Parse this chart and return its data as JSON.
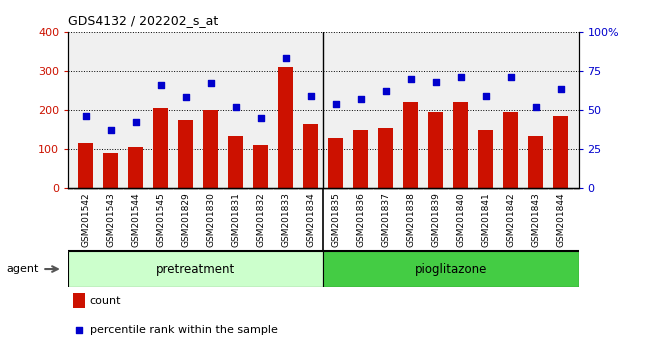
{
  "title": "GDS4132 / 202202_s_at",
  "samples": [
    "GSM201542",
    "GSM201543",
    "GSM201544",
    "GSM201545",
    "GSM201829",
    "GSM201830",
    "GSM201831",
    "GSM201832",
    "GSM201833",
    "GSM201834",
    "GSM201835",
    "GSM201836",
    "GSM201837",
    "GSM201838",
    "GSM201839",
    "GSM201840",
    "GSM201841",
    "GSM201842",
    "GSM201843",
    "GSM201844"
  ],
  "counts": [
    115,
    88,
    105,
    205,
    173,
    200,
    133,
    110,
    310,
    163,
    128,
    147,
    152,
    220,
    195,
    220,
    148,
    195,
    132,
    183
  ],
  "percentiles": [
    46,
    37,
    42,
    66,
    58,
    67,
    52,
    45,
    83,
    59,
    54,
    57,
    62,
    70,
    68,
    71,
    59,
    71,
    52,
    63
  ],
  "group1_label": "pretreatment",
  "group1_count": 10,
  "group2_label": "pioglitazone",
  "group2_count": 10,
  "agent_label": "agent",
  "bar_color": "#cc1100",
  "dot_color": "#0000cc",
  "ylim_left": [
    0,
    400
  ],
  "ylim_right": [
    0,
    100
  ],
  "yticks_left": [
    0,
    100,
    200,
    300,
    400
  ],
  "yticks_right": [
    0,
    25,
    50,
    75,
    100
  ],
  "yticklabels_right": [
    "0",
    "25",
    "50",
    "75",
    "100%"
  ],
  "legend_count_label": "count",
  "legend_pct_label": "percentile rank within the sample",
  "plot_bg": "#f0f0f0",
  "xtick_bg": "#c8c8c8",
  "group1_bg": "#ccffcc",
  "group2_bg": "#44cc44",
  "fig_bg": "#ffffff"
}
